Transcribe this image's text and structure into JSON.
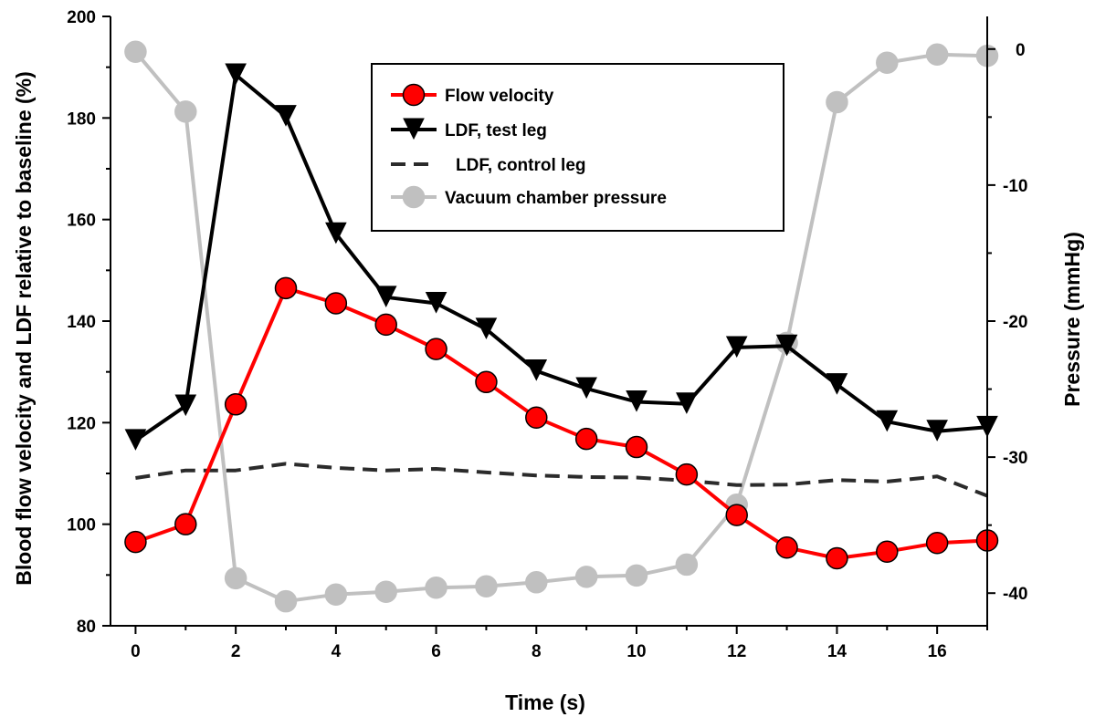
{
  "chart_data": {
    "type": "line",
    "xlabel": "Time (s)",
    "ylabel": "Blood flow velocity and LDF relative to baseline (%)",
    "y2label": "Pressure (mmHg)",
    "xlim": [
      -0.5,
      17
    ],
    "ylim": [
      80,
      200
    ],
    "y2lim": [
      -42.4,
      2.4
    ],
    "x_ticks": [
      "0",
      "2",
      "4",
      "6",
      "8",
      "10",
      "12",
      "14",
      "16"
    ],
    "y_ticks": [
      "80",
      "100",
      "120",
      "140",
      "160",
      "180",
      "200"
    ],
    "y2_ticks": [
      "0",
      "-10",
      "-20",
      "-30",
      "-40"
    ],
    "grid": false,
    "legend_position": "top-center",
    "series": [
      {
        "name": "Flow velocity",
        "axis": "left",
        "color": "#ff0000",
        "marker": "circle",
        "marker_fill": "#ff0000",
        "line_style": "solid",
        "points": [
          [
            0,
            96.5
          ],
          [
            1,
            100
          ],
          [
            2,
            123.6
          ],
          [
            3,
            146.5
          ],
          [
            4,
            143.5
          ],
          [
            5,
            139.3
          ],
          [
            6,
            134.5
          ],
          [
            7,
            128
          ],
          [
            8,
            121
          ],
          [
            9,
            116.8
          ],
          [
            10,
            115.2
          ],
          [
            11,
            109.8
          ],
          [
            12,
            101.8
          ],
          [
            13,
            95.4
          ],
          [
            14,
            93.3
          ],
          [
            15,
            94.6
          ],
          [
            16,
            96.3
          ],
          [
            17,
            96.8
          ]
        ]
      },
      {
        "name": "LDF, test leg",
        "axis": "left",
        "color": "#000000",
        "marker": "triangle-down",
        "marker_fill": "#000000",
        "line_style": "solid",
        "points": [
          [
            0,
            116.5
          ],
          [
            1,
            123.3
          ],
          [
            2,
            188.5
          ],
          [
            3,
            180.3
          ],
          [
            4,
            157.2
          ],
          [
            5,
            144.7
          ],
          [
            6,
            143.5
          ],
          [
            7,
            138.4
          ],
          [
            8,
            130.2
          ],
          [
            9,
            126.7
          ],
          [
            10,
            124.1
          ],
          [
            11,
            123.7
          ],
          [
            12,
            134.8
          ],
          [
            13,
            135.1
          ],
          [
            14,
            127.5
          ],
          [
            15,
            120.2
          ],
          [
            16,
            118.3
          ],
          [
            17,
            119.1
          ]
        ]
      },
      {
        "name": "LDF, control leg",
        "axis": "left",
        "color": "#2b2b2b",
        "marker": "none",
        "line_style": "dashed",
        "points": [
          [
            0,
            109.1
          ],
          [
            1,
            110.6
          ],
          [
            2,
            110.6
          ],
          [
            3,
            111.9
          ],
          [
            4,
            111.1
          ],
          [
            5,
            110.6
          ],
          [
            6,
            110.9
          ],
          [
            7,
            110.2
          ],
          [
            8,
            109.6
          ],
          [
            9,
            109.3
          ],
          [
            10,
            109.2
          ],
          [
            11,
            108.6
          ],
          [
            12,
            107.7
          ],
          [
            13,
            107.8
          ],
          [
            14,
            108.7
          ],
          [
            15,
            108.4
          ],
          [
            16,
            109.4
          ],
          [
            17,
            105.6
          ]
        ]
      },
      {
        "name": "Vacuum chamber pressure",
        "axis": "right",
        "color": "#c0c0c0",
        "marker": "circle",
        "marker_fill": "#c0c0c0",
        "line_style": "solid",
        "points": [
          [
            0,
            -0.2
          ],
          [
            1,
            -4.6
          ],
          [
            2,
            -38.9
          ],
          [
            3,
            -40.6
          ],
          [
            4,
            -40.1
          ],
          [
            5,
            -39.9
          ],
          [
            6,
            -39.6
          ],
          [
            7,
            -39.5
          ],
          [
            8,
            -39.2
          ],
          [
            9,
            -38.8
          ],
          [
            10,
            -38.7
          ],
          [
            11,
            -37.9
          ],
          [
            12,
            -33.5
          ],
          [
            13,
            -21.6
          ],
          [
            14,
            -3.9
          ],
          [
            15,
            -1.0
          ],
          [
            16,
            -0.4
          ],
          [
            17,
            -0.5
          ]
        ]
      }
    ]
  }
}
